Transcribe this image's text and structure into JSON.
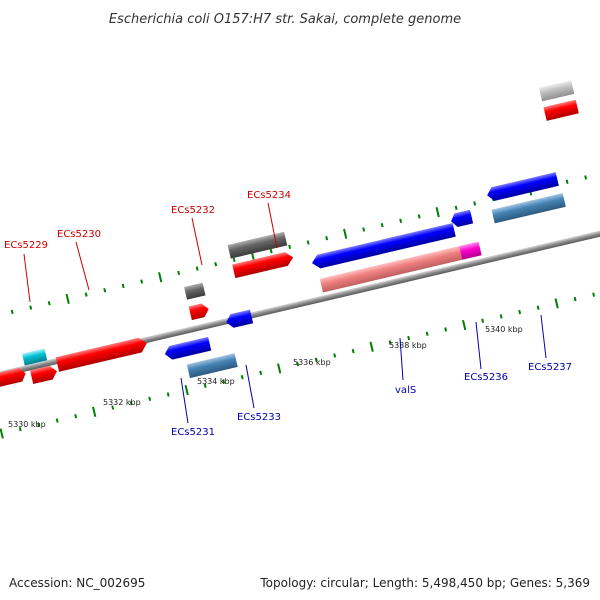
{
  "title": "Escherichia coli O157:H7 str. Sakai, complete genome",
  "footer": {
    "accession": "Accession: NC_002695",
    "summary": "Topology: circular; Length: 5,498,450 bp; Genes: 5,369"
  },
  "colors": {
    "forward_cds": "#ff0000",
    "reverse_cds": "#0000ff",
    "forward_rna_light": "#f08080",
    "reverse_gene_steel": "#4682b4",
    "misc_gray": "#666666",
    "light_gray": "#b0b0b0",
    "cyan": "#00c0d0",
    "magenta": "#ff00cc",
    "forward_label": "#cc0000",
    "reverse_label": "#0000aa",
    "ticks": "#008000",
    "backbone": "#888888"
  },
  "tick_labels": [
    {
      "text": "5330 kbp"
    },
    {
      "text": "5332 kbp"
    },
    {
      "text": "5334 kbp"
    },
    {
      "text": "5336 kbp"
    },
    {
      "text": "5338 kbp"
    },
    {
      "text": "5340 kbp"
    }
  ],
  "gene_labels": [
    {
      "text": "ECs5229",
      "strand": "forward"
    },
    {
      "text": "ECs5230",
      "strand": "forward"
    },
    {
      "text": "ECs5232",
      "strand": "forward"
    },
    {
      "text": "ECs5234",
      "strand": "forward"
    },
    {
      "text": "ECs5231",
      "strand": "reverse"
    },
    {
      "text": "ECs5233",
      "strand": "reverse"
    },
    {
      "text": "valS",
      "strand": "reverse"
    },
    {
      "text": "ECs5236",
      "strand": "reverse"
    },
    {
      "text": "ECs5237",
      "strand": "reverse"
    }
  ]
}
